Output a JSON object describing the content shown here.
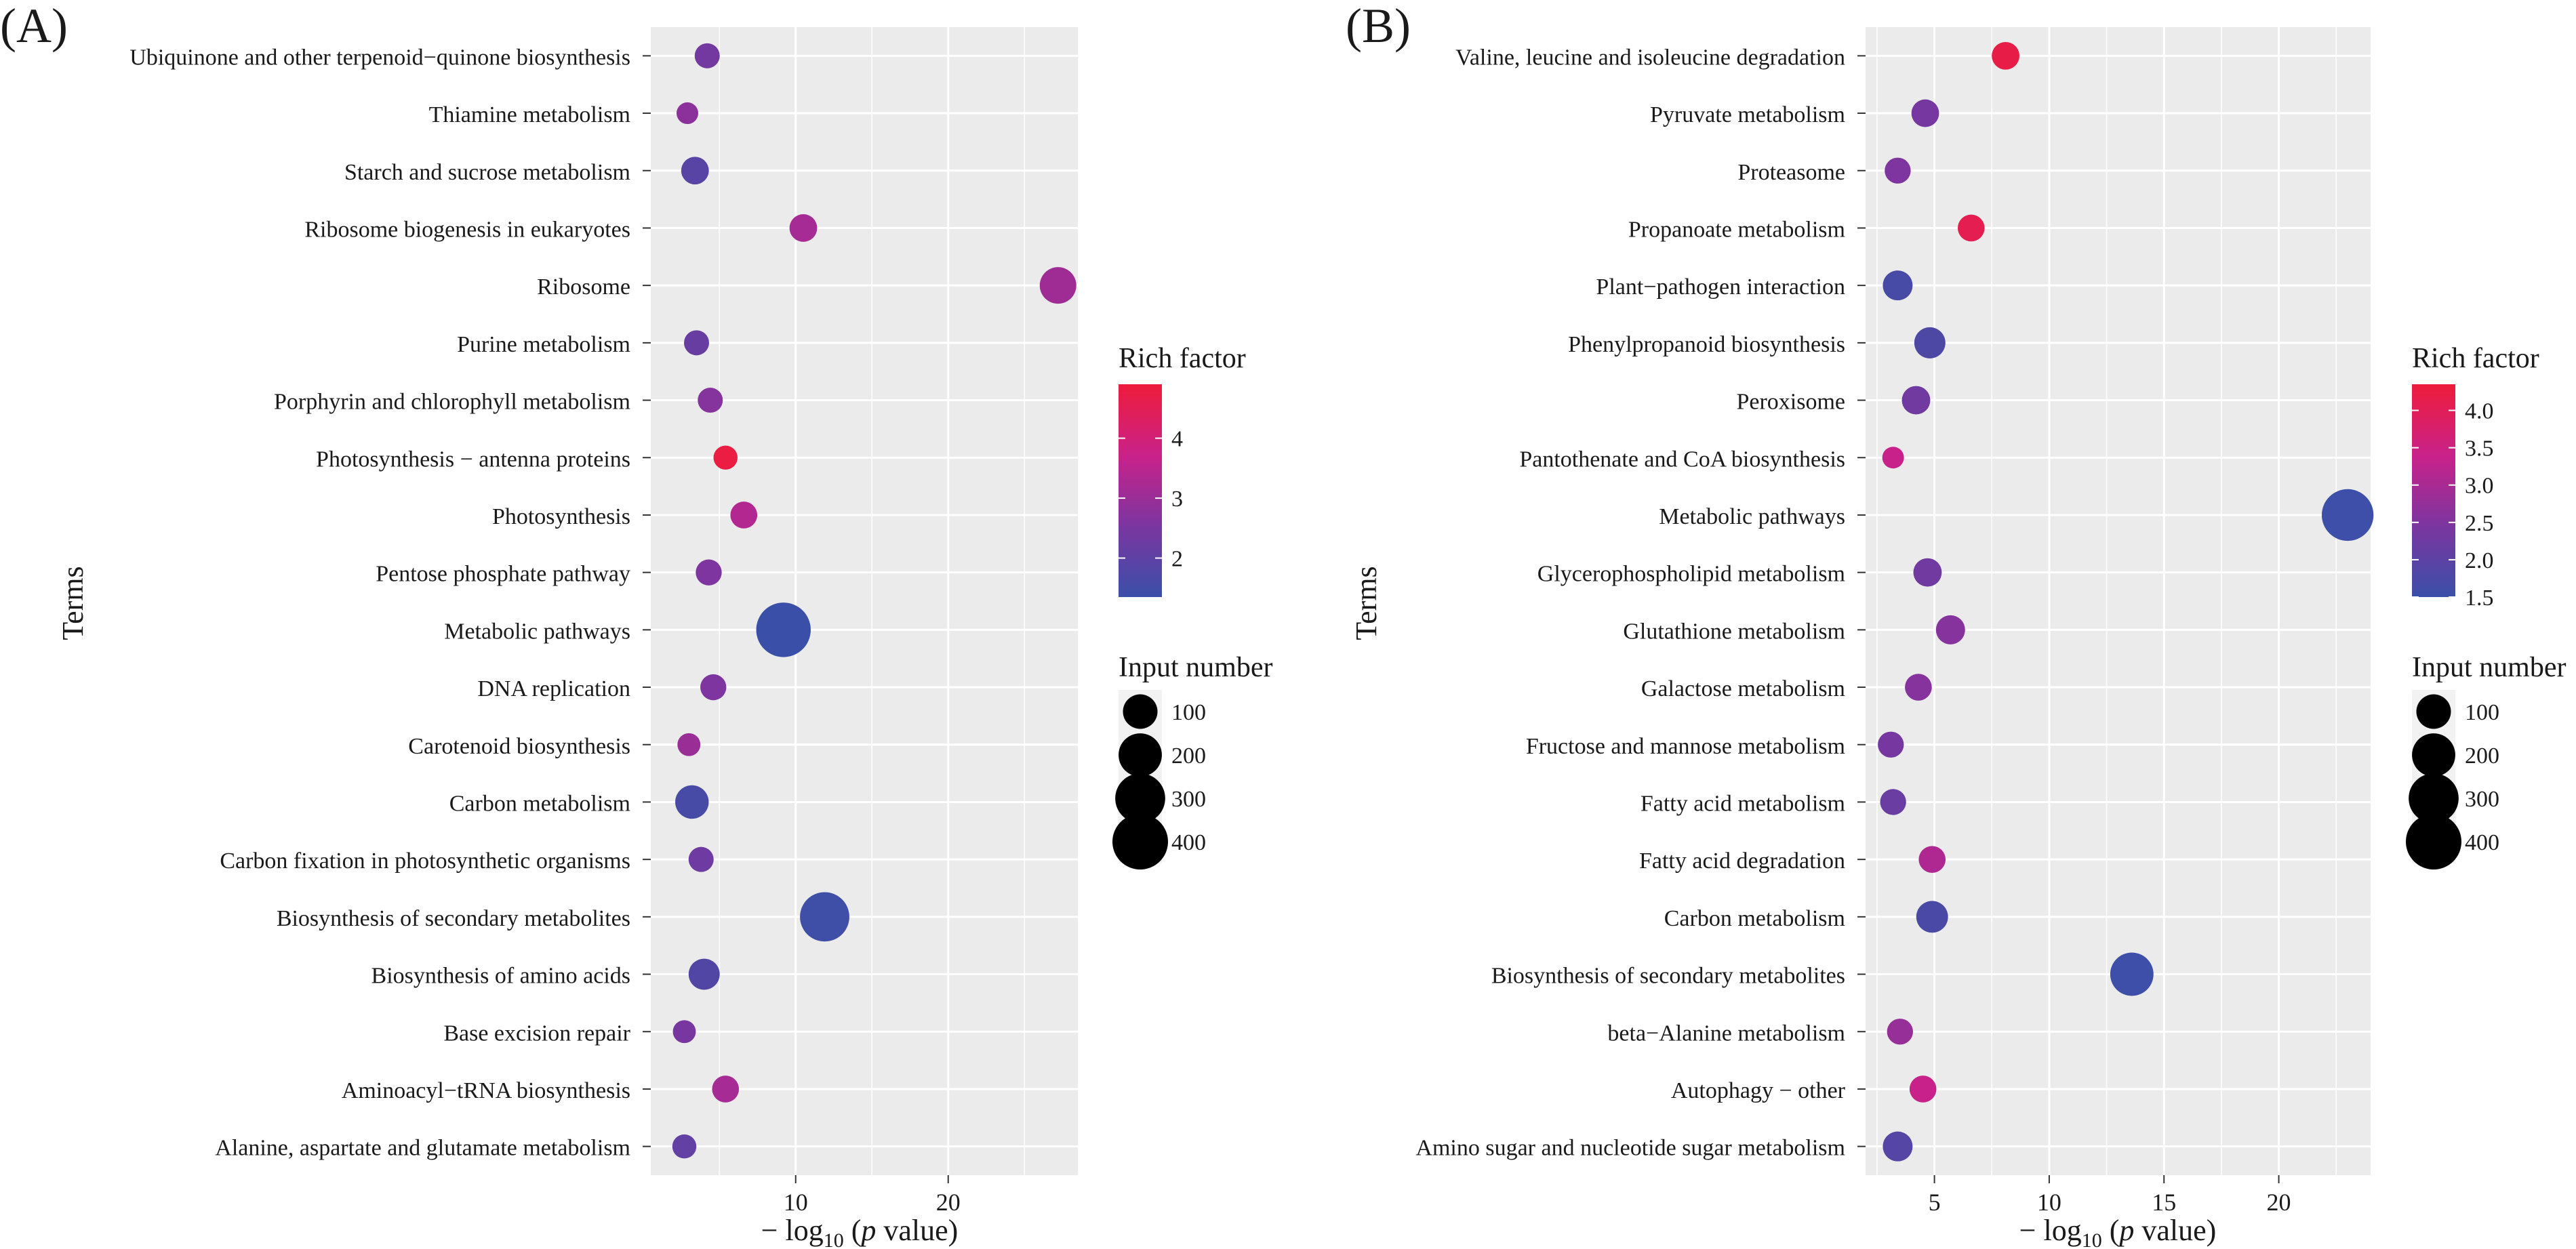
{
  "figure": {
    "description_free": true
  },
  "chart_data": [
    {
      "panel_label": "(A)",
      "type": "scatter",
      "title": "",
      "xlabel_prefix": "− log",
      "xlabel_sub": "10",
      "xlabel_open": " (",
      "xlabel_italic": "p",
      "xlabel_close": " value)",
      "ylabel": "Terms",
      "xlim": [
        0.5,
        28.5
      ],
      "xticks": [
        10,
        20
      ],
      "grid": true,
      "terms": [
        "Ubiquinone and other terpenoid−quinone biosynthesis",
        "Thiamine metabolism",
        "Starch and sucrose metabolism",
        "Ribosome biogenesis in eukaryotes",
        "Ribosome",
        "Purine metabolism",
        "Porphyrin and chlorophyll metabolism",
        "Photosynthesis − antenna proteins",
        "Photosynthesis",
        "Pentose phosphate pathway",
        "Metabolic pathways",
        "DNA replication",
        "Carotenoid biosynthesis",
        "Carbon metabolism",
        "Carbon fixation in photosynthetic organisms",
        "Biosynthesis of secondary metabolites",
        "Biosynthesis of amino acids",
        "Base excision repair",
        "Aminoacyl−tRNA biosynthesis",
        "Alanine, aspartate and glutamate metabolism"
      ],
      "x": [
        4.2,
        2.9,
        3.4,
        10.5,
        27.2,
        3.5,
        4.4,
        5.4,
        6.6,
        4.3,
        9.2,
        4.6,
        3.0,
        3.2,
        3.8,
        11.9,
        4.0,
        2.7,
        5.4,
        2.7
      ],
      "rich": [
        2.4,
        2.8,
        1.9,
        3.2,
        3.1,
        2.2,
        2.7,
        4.8,
        3.4,
        2.6,
        1.35,
        2.6,
        3.0,
        1.6,
        2.3,
        1.45,
        1.8,
        2.5,
        3.2,
        2.1
      ],
      "number": [
        30,
        15,
        45,
        45,
        120,
        30,
        30,
        25,
        40,
        35,
        380,
        35,
        20,
        90,
        30,
        290,
        70,
        20,
        40,
        25
      ],
      "legend_color": {
        "title": "Rich factor",
        "min": 1.35,
        "max": 4.9,
        "ticks": [
          2,
          3,
          4
        ],
        "colors": [
          "#3a50a8",
          "#7a36a0",
          "#c8228a",
          "#ee1c3b"
        ]
      },
      "legend_size": {
        "title": "Input number",
        "values": [
          100,
          200,
          300,
          400
        ]
      }
    },
    {
      "panel_label": "(B)",
      "type": "scatter",
      "title": "",
      "xlabel_prefix": "− log",
      "xlabel_sub": "10",
      "xlabel_open": " (",
      "xlabel_italic": "p",
      "xlabel_close": " value)",
      "ylabel": "Terms",
      "xlim": [
        2.0,
        24.0
      ],
      "xticks": [
        5,
        10,
        15,
        20
      ],
      "grid": true,
      "terms": [
        "Valine, leucine and isoleucine degradation",
        "Pyruvate metabolism",
        "Proteasome",
        "Propanoate metabolism",
        "Plant−pathogen interaction",
        "Phenylpropanoid biosynthesis",
        "Peroxisome",
        "Pantothenate and CoA biosynthesis",
        "Metabolic pathways",
        "Glycerophospholipid metabolism",
        "Glutathione metabolism",
        "Galactose metabolism",
        "Fructose and mannose metabolism",
        "Fatty acid metabolism",
        "Fatty acid degradation",
        "Carbon metabolism",
        "Biosynthesis of secondary metabolites",
        "beta−Alanine metabolism",
        "Autophagy − other",
        "Amino sugar and nucleotide sugar metabolism"
      ],
      "x": [
        8.1,
        4.6,
        3.4,
        6.6,
        3.4,
        4.8,
        4.2,
        3.2,
        23.0,
        4.7,
        5.7,
        4.3,
        3.1,
        3.2,
        4.9,
        4.9,
        13.6,
        3.5,
        4.5,
        3.4
      ],
      "rich": [
        4.2,
        2.4,
        2.5,
        4.1,
        1.7,
        1.8,
        2.3,
        3.4,
        1.55,
        2.3,
        2.6,
        2.6,
        2.4,
        2.2,
        3.1,
        1.75,
        1.55,
        2.8,
        3.4,
        1.9
      ],
      "number": [
        45,
        45,
        35,
        40,
        60,
        70,
        50,
        15,
        330,
        50,
        55,
        40,
        35,
        35,
        40,
        75,
        200,
        35,
        40,
        60
      ],
      "legend_color": {
        "title": "Rich factor",
        "min": 1.5,
        "max": 4.35,
        "ticks": [
          1.5,
          2.0,
          2.5,
          3.0,
          3.5,
          4.0
        ],
        "tick_labels": [
          "1.5",
          "2.0",
          "2.5",
          "3.0",
          "3.5",
          "4.0"
        ],
        "colors": [
          "#3a50a8",
          "#7a36a0",
          "#c8228a",
          "#ee1c3b"
        ]
      },
      "legend_size": {
        "title": "Input number",
        "values": [
          100,
          200,
          300,
          400
        ]
      }
    }
  ]
}
